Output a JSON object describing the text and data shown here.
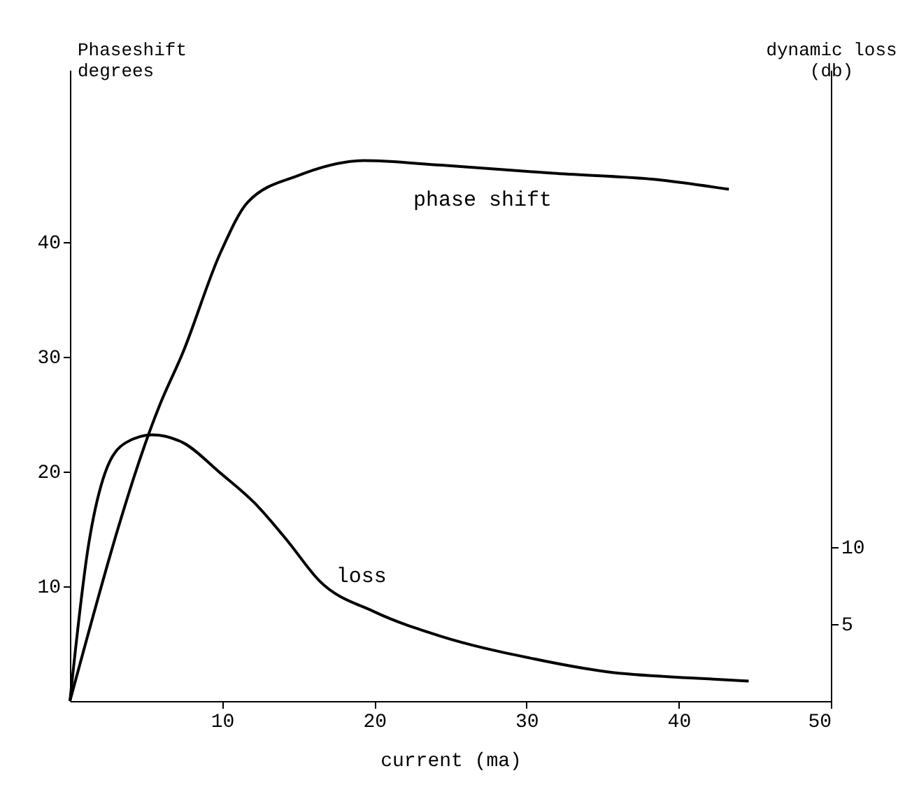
{
  "chart_data": {
    "type": "line",
    "xlabel": "current (ma)",
    "ylabel": "Phaseshift degrees",
    "y2label": "dynamic loss (db)",
    "xlim": [
      0,
      50
    ],
    "xticks": [
      10,
      20,
      30,
      40,
      50
    ],
    "ylim": [
      0,
      55
    ],
    "yticks": [
      10,
      20,
      30,
      40
    ],
    "y2lim": [
      0,
      41
    ],
    "y2ticks": [
      5,
      10
    ],
    "grid": false,
    "marker": "none",
    "line_style": "solid",
    "series": [
      {
        "name": "phase shift",
        "color": "#000000",
        "x": [
          0,
          5.9,
          7.4,
          9.9,
          11.7,
          15.0,
          19.3,
          24.4,
          31.7,
          38.9,
          43.3
        ],
        "values": [
          0,
          25.8,
          30.3,
          39.1,
          43.5,
          45.8,
          47.1,
          46.7,
          46.0,
          45.4,
          44.6
        ]
      },
      {
        "name": "loss",
        "color": "#000000",
        "axis": "y2",
        "x": [
          0,
          1.2,
          2.3,
          3.7,
          5.4,
          7.4,
          9.9,
          12.1,
          14.3,
          16.4,
          20.0,
          24.4,
          30.2,
          35.3,
          40.8,
          44.6
        ],
        "values": [
          0,
          10.0,
          14.8,
          16.8,
          17.3,
          16.8,
          14.8,
          12.9,
          10.4,
          7.8,
          5.8,
          4.2,
          2.8,
          1.9,
          1.5,
          1.3
        ]
      }
    ]
  }
}
